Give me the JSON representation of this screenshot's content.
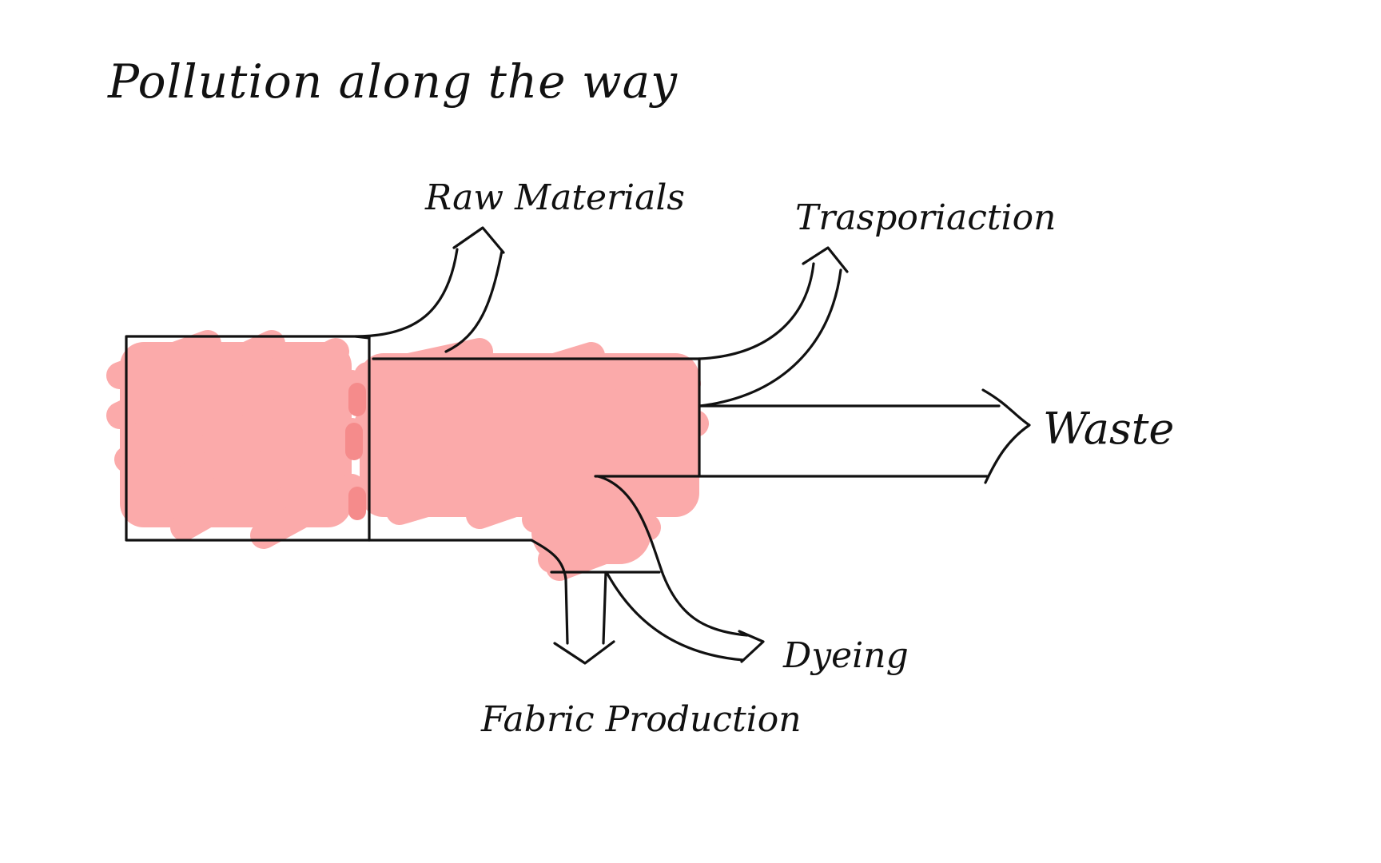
{
  "title": "Pollution along the way",
  "labels": {
    "raw_materials": "Raw Materials",
    "transportation": "Trasporiaction",
    "waste": "Waste",
    "dyeing": "Dyeing",
    "fabric_production": "Fabric Production"
  },
  "colors": {
    "ink": "#111111",
    "highlight": "#fbaaaa",
    "highlight_overlap": "#f58b8b",
    "background": "#ffffff"
  }
}
